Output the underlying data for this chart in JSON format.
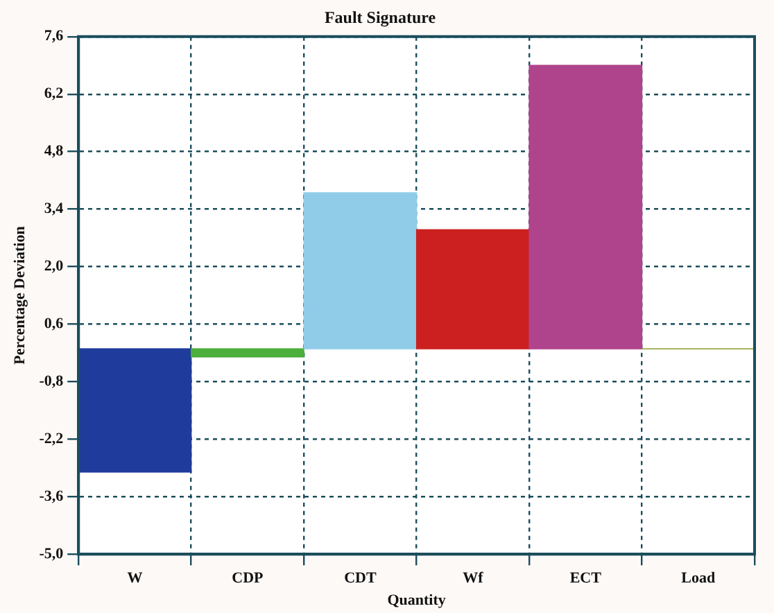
{
  "chart_data": {
    "type": "bar",
    "title": "Fault Signature",
    "xlabel": "Quantity",
    "ylabel": "Percentage Deviation",
    "categories": [
      "W",
      "CDP",
      "CDT",
      "Wf",
      "ECT",
      "Load"
    ],
    "values": [
      -3.0,
      -0.2,
      3.8,
      2.9,
      6.9,
      0.0
    ],
    "colors": [
      "#1f3c9c",
      "#4caf3c",
      "#90cce8",
      "#cc2020",
      "#b0448c",
      "#8c9a2c"
    ],
    "ylim": [
      -5.0,
      7.6
    ],
    "yticks": [
      {
        "value": -5.0,
        "label": "-5,0"
      },
      {
        "value": -3.6,
        "label": "-3,6"
      },
      {
        "value": -2.2,
        "label": "-2,2"
      },
      {
        "value": -0.8,
        "label": "-0,8"
      },
      {
        "value": 0.6,
        "label": "0,6"
      },
      {
        "value": 2.0,
        "label": "2,0"
      },
      {
        "value": 3.4,
        "label": "3,4"
      },
      {
        "value": 4.8,
        "label": "4,8"
      },
      {
        "value": 6.2,
        "label": "6,2"
      },
      {
        "value": 7.6,
        "label": "7,6"
      }
    ],
    "grid": true,
    "line_style": "dashed"
  }
}
